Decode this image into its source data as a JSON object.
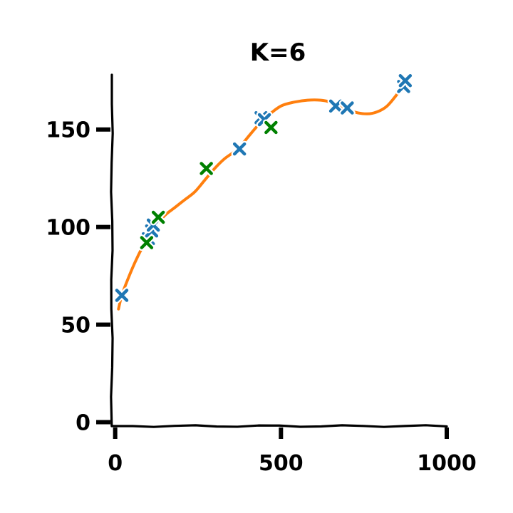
{
  "chart_data": {
    "type": "scatter",
    "title": "K=6",
    "xlabel": "",
    "ylabel": "",
    "xlim": [
      -10,
      1000
    ],
    "ylim": [
      -2,
      178
    ],
    "x_ticks": [
      0,
      500,
      1000
    ],
    "x_tick_labels": [
      "0",
      "500",
      "1000"
    ],
    "y_ticks": [
      0,
      50,
      100,
      150
    ],
    "y_tick_labels": [
      "0",
      "50",
      "100",
      "150"
    ],
    "grid": false,
    "style": "hand-drawn",
    "colors": {
      "train": "#1f77b4",
      "test": "#008000",
      "fit": "#ff7f0e"
    },
    "series": [
      {
        "kind": "scatter",
        "marker": "x",
        "color": "#1f77b4",
        "points": [
          [
            20,
            65
          ],
          [
            100,
            94
          ],
          [
            110,
            98
          ],
          [
            115,
            101
          ],
          [
            375,
            140
          ],
          [
            440,
            156
          ],
          [
            450,
            155
          ],
          [
            665,
            162
          ],
          [
            700,
            161
          ],
          [
            870,
            172
          ],
          [
            875,
            175
          ]
        ]
      },
      {
        "kind": "scatter",
        "marker": "x",
        "color": "#008000",
        "points": [
          [
            95,
            92
          ],
          [
            130,
            105
          ],
          [
            275,
            130
          ],
          [
            470,
            151
          ]
        ]
      },
      {
        "kind": "line",
        "color": "#ff7f0e",
        "points": [
          [
            10,
            58
          ],
          [
            20,
            65
          ],
          [
            40,
            74
          ],
          [
            60,
            82
          ],
          [
            80,
            89
          ],
          [
            100,
            95
          ],
          [
            120,
            100
          ],
          [
            150,
            106
          ],
          [
            180,
            110
          ],
          [
            210,
            114
          ],
          [
            240,
            118
          ],
          [
            270,
            124
          ],
          [
            300,
            130
          ],
          [
            330,
            135
          ],
          [
            370,
            140
          ],
          [
            400,
            146
          ],
          [
            430,
            152
          ],
          [
            460,
            157
          ],
          [
            500,
            162
          ],
          [
            540,
            164
          ],
          [
            580,
            165
          ],
          [
            620,
            165
          ],
          [
            650,
            164
          ],
          [
            680,
            162
          ],
          [
            720,
            159
          ],
          [
            760,
            158
          ],
          [
            790,
            159
          ],
          [
            820,
            162
          ],
          [
            850,
            168
          ],
          [
            875,
            174
          ]
        ]
      }
    ]
  }
}
